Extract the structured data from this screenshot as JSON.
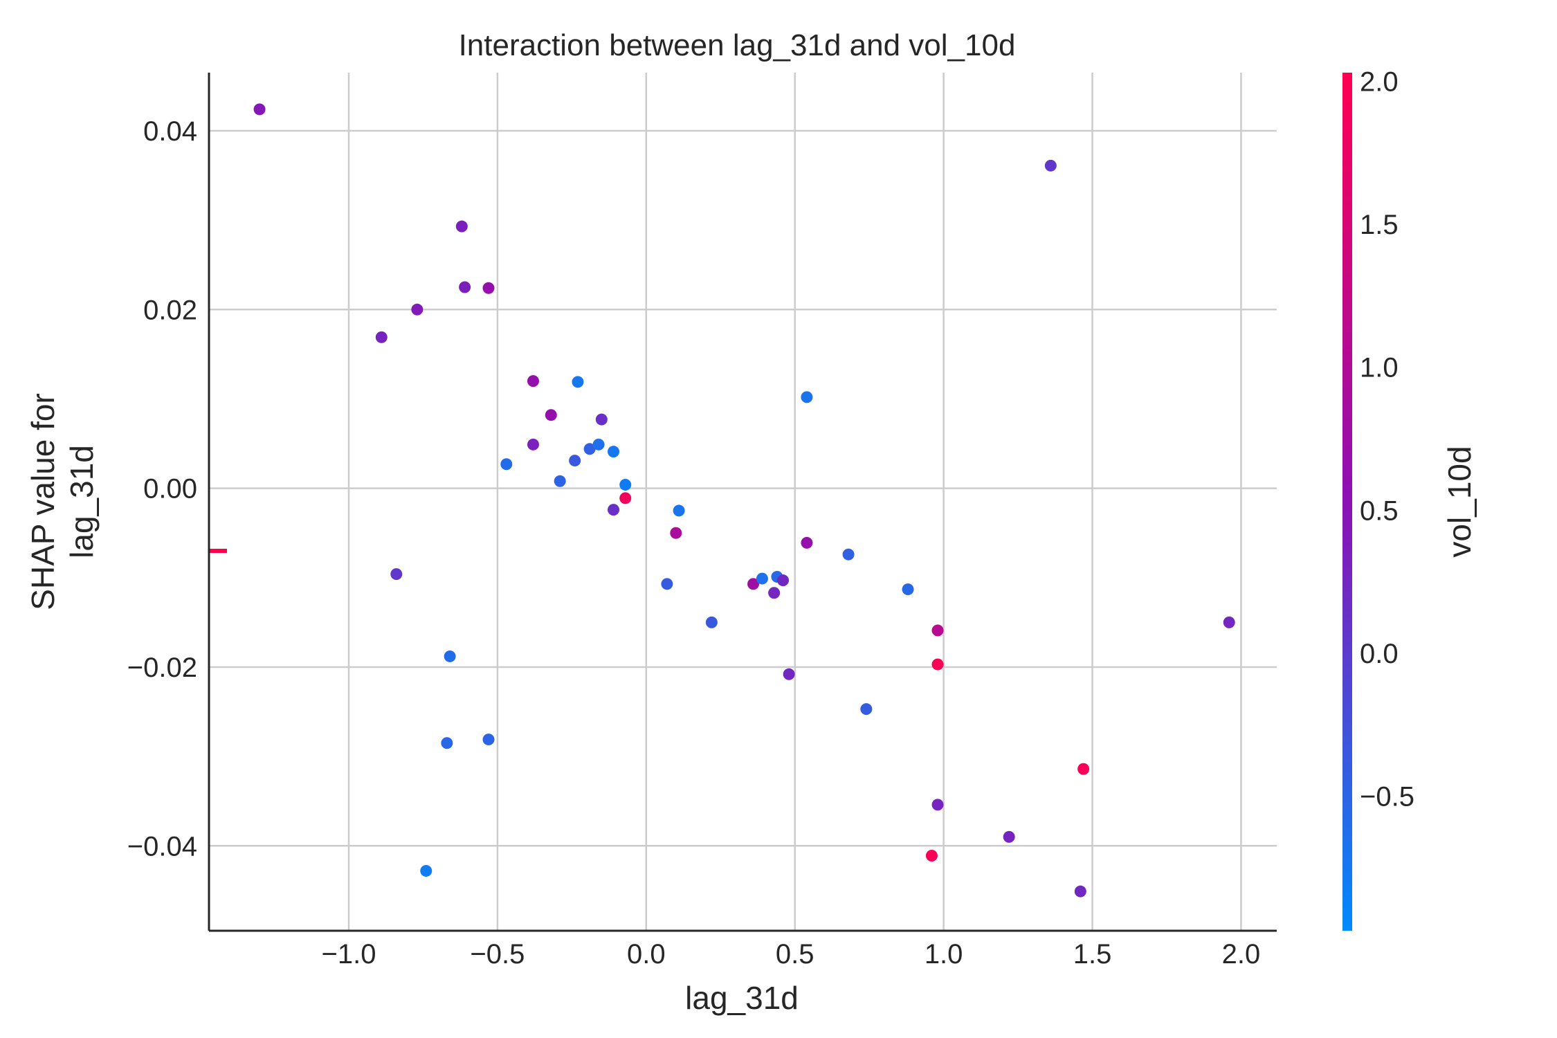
{
  "chart_data": {
    "type": "scatter",
    "title": "Interaction between lag_31d and vol_10d",
    "xlabel": "lag_31d",
    "ylabel_lines": [
      "SHAP value for",
      "lag_31d"
    ],
    "xlim": [
      -1.47,
      2.12
    ],
    "ylim": [
      -0.0495,
      0.0465
    ],
    "x_ticks": [
      -1.0,
      -0.5,
      0.0,
      0.5,
      1.0,
      1.5,
      2.0
    ],
    "x_tick_labels": [
      "−1.0",
      "−0.5",
      "0.0",
      "0.5",
      "1.0",
      "1.5",
      "2.0"
    ],
    "y_ticks": [
      0.04,
      0.02,
      0.0,
      -0.02,
      -0.04
    ],
    "y_tick_labels": [
      "0.04",
      "0.02",
      "0.00",
      "−0.02",
      "−0.04"
    ],
    "grid": true,
    "colorbar": {
      "label": "vol_10d",
      "min": -0.97,
      "max": 2.03,
      "ticks": [
        2.0,
        1.5,
        1.0,
        0.5,
        0.0,
        -0.5
      ],
      "tick_labels": [
        "2.0",
        "1.5",
        "1.0",
        "0.5",
        "0.0",
        "−0.5"
      ],
      "colormap": [
        "#008afb",
        "#8c10b4",
        "#ff0051"
      ]
    },
    "nan_marker": {
      "y": -0.007,
      "color": "#ff0051"
    },
    "points": [
      {
        "x": -1.3,
        "y": 0.0424,
        "c": 0.45
      },
      {
        "x": -0.89,
        "y": 0.0169,
        "c": 0.3
      },
      {
        "x": -0.77,
        "y": 0.02,
        "c": 0.4
      },
      {
        "x": -0.84,
        "y": -0.0096,
        "c": 0.05
      },
      {
        "x": -0.62,
        "y": 0.0293,
        "c": 0.35
      },
      {
        "x": -0.61,
        "y": 0.0225,
        "c": 0.35
      },
      {
        "x": -0.53,
        "y": 0.0224,
        "c": 0.65
      },
      {
        "x": -0.74,
        "y": -0.0428,
        "c": -0.8
      },
      {
        "x": -0.66,
        "y": -0.0188,
        "c": -0.6
      },
      {
        "x": -0.67,
        "y": -0.0285,
        "c": -0.55
      },
      {
        "x": -0.53,
        "y": -0.0281,
        "c": -0.5
      },
      {
        "x": -0.47,
        "y": 0.0027,
        "c": -0.6
      },
      {
        "x": -0.38,
        "y": 0.012,
        "c": 0.65
      },
      {
        "x": -0.38,
        "y": 0.0049,
        "c": 0.35
      },
      {
        "x": -0.32,
        "y": 0.0082,
        "c": 0.65
      },
      {
        "x": -0.29,
        "y": 0.0008,
        "c": -0.5
      },
      {
        "x": -0.24,
        "y": 0.0031,
        "c": -0.35
      },
      {
        "x": -0.23,
        "y": 0.0119,
        "c": -0.75
      },
      {
        "x": -0.19,
        "y": 0.0044,
        "c": -0.45
      },
      {
        "x": -0.16,
        "y": 0.0049,
        "c": -0.65
      },
      {
        "x": -0.15,
        "y": 0.0077,
        "c": 0.15
      },
      {
        "x": -0.11,
        "y": 0.0041,
        "c": -0.75
      },
      {
        "x": -0.11,
        "y": -0.0024,
        "c": 0.15
      },
      {
        "x": -0.07,
        "y": 0.0004,
        "c": -0.8
      },
      {
        "x": -0.07,
        "y": -0.0011,
        "c": 1.85
      },
      {
        "x": 0.07,
        "y": -0.0107,
        "c": -0.4
      },
      {
        "x": 0.1,
        "y": -0.005,
        "c": 0.9
      },
      {
        "x": 0.11,
        "y": -0.0025,
        "c": -0.7
      },
      {
        "x": 0.22,
        "y": -0.015,
        "c": -0.35
      },
      {
        "x": 0.36,
        "y": -0.0107,
        "c": 0.75
      },
      {
        "x": 0.39,
        "y": -0.0101,
        "c": -0.65
      },
      {
        "x": 0.43,
        "y": -0.0117,
        "c": 0.25
      },
      {
        "x": 0.44,
        "y": -0.0099,
        "c": -0.55
      },
      {
        "x": 0.46,
        "y": -0.0103,
        "c": 0.25
      },
      {
        "x": 0.48,
        "y": -0.0208,
        "c": 0.25
      },
      {
        "x": 0.54,
        "y": 0.0102,
        "c": -0.7
      },
      {
        "x": 0.54,
        "y": -0.0061,
        "c": 0.65
      },
      {
        "x": 0.68,
        "y": -0.0074,
        "c": -0.45
      },
      {
        "x": 0.74,
        "y": -0.0247,
        "c": -0.4
      },
      {
        "x": 0.88,
        "y": -0.0113,
        "c": -0.55
      },
      {
        "x": 0.96,
        "y": -0.0411,
        "c": 1.95
      },
      {
        "x": 0.98,
        "y": -0.0159,
        "c": 1.1
      },
      {
        "x": 0.98,
        "y": -0.0197,
        "c": 1.95
      },
      {
        "x": 0.98,
        "y": -0.0354,
        "c": 0.3
      },
      {
        "x": 1.22,
        "y": -0.039,
        "c": 0.3
      },
      {
        "x": 1.36,
        "y": 0.0361,
        "c": 0.05
      },
      {
        "x": 1.46,
        "y": -0.0451,
        "c": 0.25
      },
      {
        "x": 1.47,
        "y": -0.0314,
        "c": 1.95
      },
      {
        "x": 1.96,
        "y": -0.015,
        "c": 0.25
      }
    ]
  }
}
